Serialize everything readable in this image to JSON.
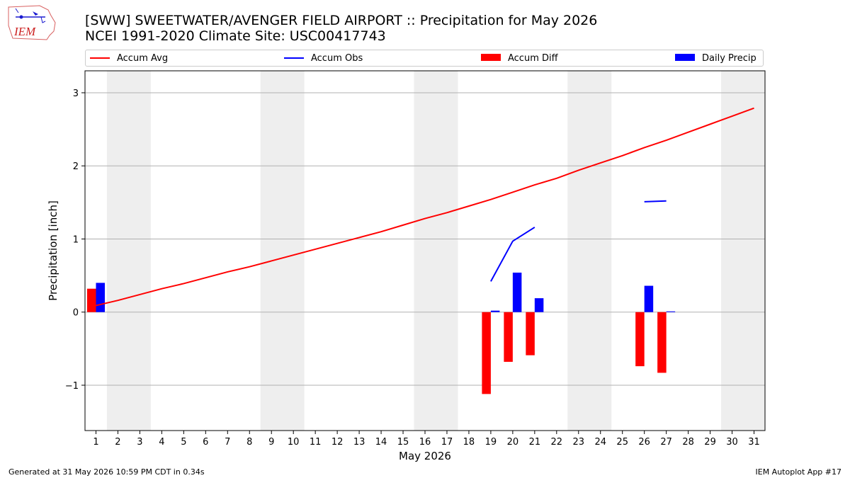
{
  "header": {
    "title_line1": "[SWW] SWEETWATER/AVENGER FIELD AIRPORT :: Precipitation for May 2026",
    "title_line2": "NCEI 1991-2020 Climate Site: USC00417743"
  },
  "logo": {
    "text": "IEM"
  },
  "footer": {
    "left": "Generated at 31 May 2026 10:59 PM CDT in 0.34s",
    "right": "IEM Autoplot App #17"
  },
  "colors": {
    "avg": "#ff0000",
    "obs": "#0000ff",
    "diff": "#ff0000",
    "daily": "#0000ff",
    "weekend": "#eeeeee",
    "grid": "#b0b0b0"
  },
  "chart_data": {
    "type": "bar",
    "xlabel": "May 2026",
    "ylabel": "Precipitation [inch]",
    "xlim": [
      0.5,
      31.5
    ],
    "ylim": [
      -1.62,
      3.3
    ],
    "yticks": [
      -1,
      0,
      1,
      2,
      3
    ],
    "ytick_labels": [
      "−1",
      "0",
      "1",
      "2",
      "3"
    ],
    "days": [
      1,
      2,
      3,
      4,
      5,
      6,
      7,
      8,
      9,
      10,
      11,
      12,
      13,
      14,
      15,
      16,
      17,
      18,
      19,
      20,
      21,
      22,
      23,
      24,
      25,
      26,
      27,
      28,
      29,
      30,
      31
    ],
    "weekend_spans": [
      [
        1.5,
        3.5
      ],
      [
        8.5,
        10.5
      ],
      [
        15.5,
        17.5
      ],
      [
        22.5,
        24.5
      ],
      [
        29.5,
        31.5
      ]
    ],
    "grid": "horizontal",
    "legend_position": "top",
    "legend": [
      "Accum Avg",
      "Accum Obs",
      "Accum Diff",
      "Daily Precip"
    ],
    "series": [
      {
        "name": "Accum Avg",
        "kind": "line",
        "x": [
          1,
          2,
          3,
          4,
          5,
          6,
          7,
          8,
          9,
          10,
          11,
          12,
          13,
          14,
          15,
          16,
          17,
          18,
          19,
          20,
          21,
          22,
          23,
          24,
          25,
          26,
          27,
          28,
          29,
          30,
          31
        ],
        "values": [
          0.09,
          0.16,
          0.24,
          0.32,
          0.39,
          0.47,
          0.55,
          0.62,
          0.7,
          0.78,
          0.86,
          0.94,
          1.02,
          1.1,
          1.19,
          1.28,
          1.36,
          1.45,
          1.54,
          1.64,
          1.74,
          1.83,
          1.94,
          2.04,
          2.14,
          2.25,
          2.35,
          2.46,
          2.57,
          2.68,
          2.79
        ]
      },
      {
        "name": "Accum Obs",
        "kind": "line",
        "segments": [
          {
            "x": [
              19,
              20,
              21
            ],
            "values": [
              0.42,
              0.97,
              1.16
            ]
          },
          {
            "x": [
              26,
              27
            ],
            "values": [
              1.51,
              1.52
            ]
          }
        ]
      },
      {
        "name": "Accum Diff",
        "kind": "bar",
        "x": [
          1,
          19,
          20,
          21,
          26,
          27
        ],
        "values": [
          0.32,
          -1.12,
          -0.68,
          -0.59,
          -0.74,
          -0.83
        ]
      },
      {
        "name": "Daily Precip",
        "kind": "bar",
        "x": [
          1,
          19,
          20,
          21,
          26,
          27
        ],
        "values": [
          0.4,
          0.02,
          0.54,
          0.19,
          0.36,
          0.01
        ]
      }
    ]
  }
}
